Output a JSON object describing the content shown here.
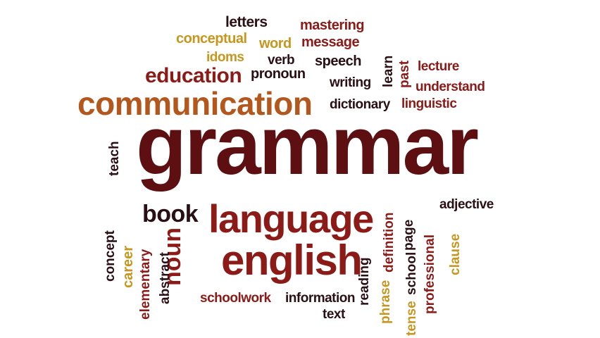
{
  "words": {
    "grammar": "grammar",
    "communication": "communication",
    "language": "language",
    "english": "english",
    "education": "education",
    "book": "book",
    "noun": "noun",
    "letters": "letters",
    "mastering": "mastering",
    "conceptual": "conceptual",
    "word": "word",
    "message": "message",
    "idoms": "idoms",
    "verb": "verb",
    "speech": "speech",
    "learn": "learn",
    "past": "past",
    "lecture": "lecture",
    "pronoun": "pronoun",
    "writing": "writing",
    "understand": "understand",
    "dictionary": "dictionary",
    "linguistic": "linguistic",
    "teach": "teach",
    "definition": "definition",
    "page": "page",
    "adjective": "adjective",
    "concept": "concept",
    "career": "career",
    "elementary": "elementary",
    "abstract": "abstract",
    "reading": "reading",
    "phrase": "phrase",
    "school": "school",
    "professional": "professional",
    "clause": "clause",
    "tense": "tense",
    "schoolwork": "schoolwork",
    "information": "information",
    "text": "text"
  },
  "colors": {
    "dark": "#2a0f14",
    "maroon": "#5d0f12",
    "red": "#8c1a17",
    "rust": "#a53d1d",
    "orange": "#b3571d",
    "gold": "#c6961e"
  }
}
